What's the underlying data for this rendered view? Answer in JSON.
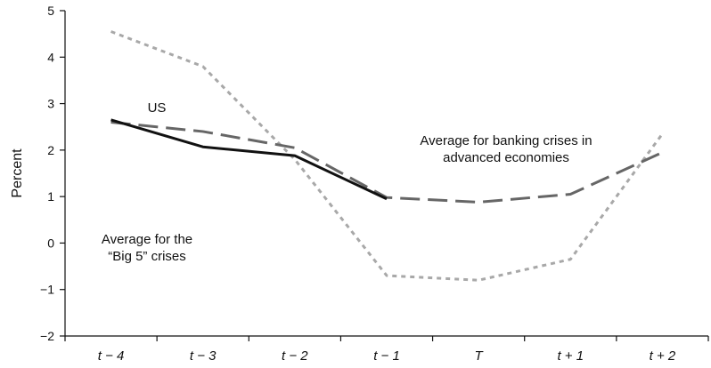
{
  "chart_data": {
    "type": "line",
    "ylabel": "Percent",
    "xlabel": "",
    "categories": [
      "t − 4",
      "t − 3",
      "t − 2",
      "t − 1",
      "T",
      "t + 1",
      "t + 2"
    ],
    "ylim": [
      -2,
      5
    ],
    "yticks": [
      -2,
      -1,
      0,
      1,
      2,
      3,
      4,
      5
    ],
    "ytick_labels": [
      "−2",
      "−1",
      "0",
      "1",
      "2",
      "3",
      "4",
      "5"
    ],
    "grid": false,
    "series": [
      {
        "key": "us",
        "values": [
          2.65,
          2.07,
          1.88,
          0.95,
          null,
          null,
          null
        ],
        "color": "#111111",
        "style": "solid"
      },
      {
        "key": "advanced",
        "values": [
          2.6,
          2.4,
          2.05,
          0.98,
          0.88,
          1.05,
          1.95
        ],
        "color": "#666666",
        "style": "dashed"
      },
      {
        "key": "big5",
        "values": [
          4.55,
          3.8,
          1.8,
          -0.7,
          -0.8,
          -0.35,
          2.35
        ],
        "color": "#a8a8a8",
        "style": "dotted"
      }
    ],
    "annotations": [
      {
        "key": "us",
        "lines": [
          "US"
        ]
      },
      {
        "key": "advanced",
        "lines": [
          "Average for banking crises in",
          "advanced economies"
        ]
      },
      {
        "key": "big5",
        "lines": [
          "Average for the",
          "“Big 5” crises"
        ]
      }
    ]
  }
}
